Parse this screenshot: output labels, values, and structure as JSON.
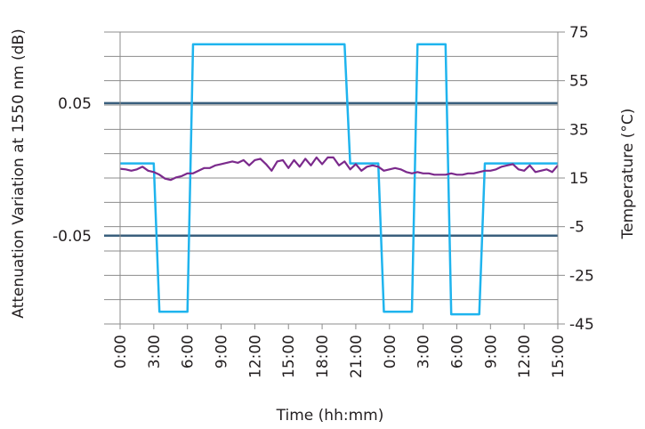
{
  "chart_data": {
    "type": "line",
    "xlabel": "Time (hh:mm)",
    "ylabel_left": "Attenuation Variation at 1550 nm (dB)",
    "ylabel_right": "Temperature (°C)",
    "x_tick_labels": [
      "0:00",
      "3:00",
      "6:00",
      "9:00",
      "12:00",
      "15:00",
      "18:00",
      "21:00",
      "0:00",
      "3:00",
      "6:00",
      "9:00",
      "12:00",
      "15:00"
    ],
    "x_unit": "hours elapsed",
    "xlim": [
      0,
      39
    ],
    "left_axis": {
      "ylim": [
        -0.1166,
        0.1036
      ],
      "ticks": [
        0.05,
        -0.05
      ],
      "tick_labels": [
        "0.05",
        "-0.05"
      ]
    },
    "right_axis": {
      "ylim": [
        -45,
        75
      ],
      "ticks": [
        75,
        55,
        35,
        15,
        -5,
        -25,
        -45
      ],
      "tick_labels": [
        "75",
        "55",
        "35",
        "15",
        "-5",
        "-25",
        "-45"
      ]
    },
    "grid": true,
    "reference_lines_left": [
      0.05,
      -0.05
    ],
    "colors": {
      "temperature": "#1fb4ee",
      "attenuation": "#7b2a8c",
      "reference": "#3a5f7d",
      "grid": "#8c8c8c"
    },
    "series": [
      {
        "axis": "right",
        "color": "#1fb4ee",
        "x": [
          0,
          3,
          3.5,
          6,
          6.5,
          20,
          20.5,
          23,
          23.5,
          26,
          26.5,
          29,
          29.5,
          32,
          32.5,
          35,
          39
        ],
        "values": [
          21,
          21,
          -40,
          -40,
          70,
          70,
          21,
          21,
          -40,
          -40,
          70,
          70,
          -41,
          -41,
          21,
          21,
          21
        ]
      },
      {
        "axis": "left",
        "color": "#7b2a8c",
        "x": [
          0,
          0.5,
          1,
          1.5,
          2,
          2.5,
          3,
          3.5,
          4,
          4.5,
          5,
          5.5,
          6,
          6.5,
          7,
          7.5,
          8,
          8.5,
          9,
          9.5,
          10,
          10.5,
          11,
          11.5,
          12,
          12.5,
          13,
          13.5,
          14,
          14.5,
          15,
          15.5,
          16,
          16.5,
          17,
          17.5,
          18,
          18.5,
          19,
          19.5,
          20,
          20.5,
          21,
          21.5,
          22,
          22.5,
          23,
          23.5,
          24,
          24.5,
          25,
          25.5,
          26,
          26.5,
          27,
          27.5,
          28,
          28.5,
          29,
          29.5,
          30,
          30.5,
          31,
          31.5,
          32,
          32.5,
          33,
          33.5,
          34,
          34.5,
          35,
          35.5,
          36,
          36.5,
          37,
          37.5,
          38,
          38.5,
          39
        ],
        "values": [
          0.0005,
          0.0,
          -0.001,
          0.0,
          0.002,
          -0.001,
          -0.002,
          -0.004,
          -0.007,
          -0.008,
          -0.006,
          -0.005,
          -0.003,
          -0.003,
          -0.001,
          0.001,
          0.001,
          0.003,
          0.004,
          0.005,
          0.006,
          0.005,
          0.007,
          0.003,
          0.007,
          0.008,
          0.004,
          -0.001,
          0.006,
          0.007,
          0.001,
          0.007,
          0.002,
          0.008,
          0.003,
          0.009,
          0.004,
          0.009,
          0.009,
          0.003,
          0.006,
          0.0,
          0.004,
          -0.001,
          0.002,
          0.003,
          0.002,
          -0.001,
          0.0,
          0.001,
          0.0,
          -0.002,
          -0.003,
          -0.002,
          -0.003,
          -0.003,
          -0.004,
          -0.004,
          -0.004,
          -0.003,
          -0.004,
          -0.004,
          -0.003,
          -0.003,
          -0.002,
          -0.001,
          -0.001,
          0.0,
          0.002,
          0.003,
          0.004,
          0.0,
          -0.001,
          0.003,
          -0.002,
          -0.001,
          0.0,
          -0.002,
          0.003
        ]
      }
    ]
  }
}
